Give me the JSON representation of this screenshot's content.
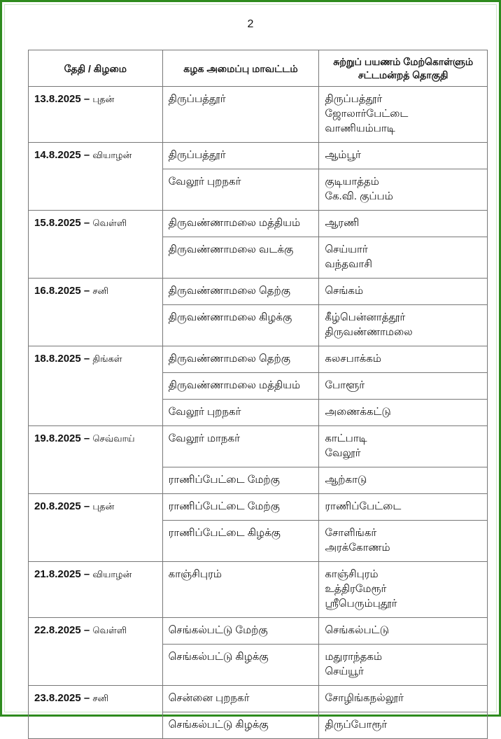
{
  "page_number": "2",
  "colors": {
    "border": "#2e8b1e"
  },
  "table": {
    "headers": [
      "தேதி / கிழமை",
      "கழக அமைப்பு மாவட்டம்",
      "சுற்றுப் பயணம் மேற்கொள்ளும் சட்டமன்றத் தொகுதி"
    ],
    "days": [
      {
        "date": "13.8.2025 –",
        "day": "புதன்",
        "rows": [
          {
            "district": "திருப்பத்தூர்",
            "constituencies": [
              "திருப்பத்தூர்",
              "ஜோலார்பேட்டை",
              "வாணியம்பாடி"
            ]
          }
        ]
      },
      {
        "date": "14.8.2025 –",
        "day": "வியாழன்",
        "rows": [
          {
            "district": "திருப்பத்தூர்",
            "constituencies": [
              "ஆம்பூர்"
            ]
          },
          {
            "district": "வேலூர் புறநகர்",
            "constituencies": [
              "குடியாத்தம்",
              "கே.வி. குப்பம்"
            ]
          }
        ]
      },
      {
        "date": "15.8.2025 –",
        "day": "வெள்ளி",
        "rows": [
          {
            "district": "திருவண்ணாமலை மத்தியம்",
            "constituencies": [
              "ஆரணி"
            ]
          },
          {
            "district": "திருவண்ணாமலை வடக்கு",
            "constituencies": [
              "செய்யார்",
              "வந்தவாசி"
            ]
          }
        ]
      },
      {
        "date": "16.8.2025 –",
        "day": "சனி",
        "rows": [
          {
            "district": "திருவண்ணாமலை தெற்கு",
            "constituencies": [
              "செங்கம்"
            ]
          },
          {
            "district": "திருவண்ணாமலை கிழக்கு",
            "constituencies": [
              "கீழ்பென்னாத்தூர்",
              "திருவண்ணாமலை"
            ]
          }
        ]
      },
      {
        "date": "18.8.2025 –",
        "day": "திங்கள்",
        "rows": [
          {
            "district": "திருவண்ணாமலை தெற்கு",
            "constituencies": [
              "கலசபாக்கம்"
            ]
          },
          {
            "district": "திருவண்ணாமலை மத்தியம்",
            "constituencies": [
              "போளூர்"
            ]
          },
          {
            "district": "வேலூர் புறநகர்",
            "constituencies": [
              "அணைக்கட்டு"
            ]
          }
        ]
      },
      {
        "date": "19.8.2025 –",
        "day": "செவ்வாய்",
        "rows": [
          {
            "district": "வேலூர் மாநகர்",
            "constituencies": [
              "காட்பாடி",
              "வேலூர்"
            ]
          },
          {
            "district": "ராணிப்பேட்டை மேற்கு",
            "constituencies": [
              "ஆற்காடு"
            ]
          }
        ]
      },
      {
        "date": "20.8.2025 –",
        "day": "புதன்",
        "rows": [
          {
            "district": "ராணிப்பேட்டை மேற்கு",
            "constituencies": [
              "ராணிப்பேட்டை"
            ]
          },
          {
            "district": "ராணிப்பேட்டை கிழக்கு",
            "constituencies": [
              "சோளிங்கர்",
              "அரக்கோணம்"
            ]
          }
        ]
      },
      {
        "date": "21.8.2025 –",
        "day": "வியாழன்",
        "rows": [
          {
            "district": "காஞ்சிபுரம்",
            "constituencies": [
              "காஞ்சிபுரம்",
              "உத்திரமேரூர்",
              "ஸ்ரீபெரும்புதூர்"
            ]
          }
        ]
      },
      {
        "date": "22.8.2025 –",
        "day": "வெள்ளி",
        "rows": [
          {
            "district": "செங்கல்பட்டு மேற்கு",
            "constituencies": [
              "செங்கல்பட்டு"
            ]
          },
          {
            "district": "செங்கல்பட்டு கிழக்கு",
            "constituencies": [
              "மதுராந்தகம்",
              "செய்யூர்"
            ]
          }
        ]
      },
      {
        "date": "23.8.2025 –",
        "day": "சனி",
        "rows": [
          {
            "district": "சென்னை புறநகர்",
            "constituencies": [
              "சோழிங்கநல்லூர்"
            ]
          },
          {
            "district": "செங்கல்பட்டு கிழக்கு",
            "constituencies": [
              "திருப்போரூர்"
            ]
          }
        ]
      }
    ]
  }
}
